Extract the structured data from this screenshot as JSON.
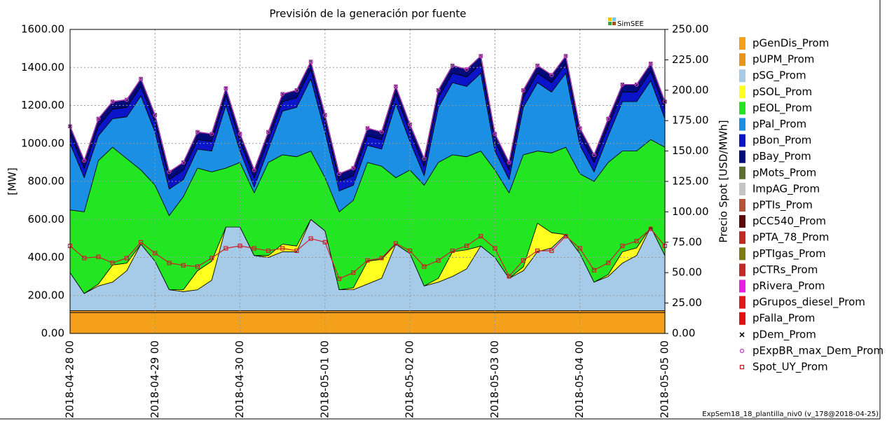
{
  "chart_data": {
    "type": "area",
    "title": "Previsión de la generación por fuente",
    "logo": "SimSEE",
    "footer": "ExpSem18_18_plantilla_niv0 (v_178@2018-04-25)",
    "ylabel": "[MW]",
    "y2label": "Precio Spot [USD/MWh]",
    "grid": true,
    "legend": "right",
    "x": [
      0,
      4,
      8,
      12,
      16,
      20,
      24,
      28,
      32,
      36,
      40,
      44,
      48,
      52,
      56,
      60,
      64,
      68,
      72,
      76,
      80,
      84,
      88,
      92,
      96,
      100,
      104,
      108,
      112,
      116,
      120,
      124,
      128,
      132,
      136,
      140,
      144,
      148,
      152,
      156,
      160,
      164,
      168
    ],
    "xlim": [
      0,
      168
    ],
    "xticks": [
      {
        "value": 0,
        "label": "2018-04-28 00"
      },
      {
        "value": 24,
        "label": "2018-04-29 00"
      },
      {
        "value": 48,
        "label": "2018-04-30 00"
      },
      {
        "value": 72,
        "label": "2018-05-01 00"
      },
      {
        "value": 96,
        "label": "2018-05-02 00"
      },
      {
        "value": 120,
        "label": "2018-05-03 00"
      },
      {
        "value": 144,
        "label": "2018-05-04 00"
      },
      {
        "value": 168,
        "label": "2018-05-05 00"
      }
    ],
    "ylim": [
      0,
      1600
    ],
    "yticks": [
      {
        "value": 0,
        "label": "0.00"
      },
      {
        "value": 200,
        "label": "200.00"
      },
      {
        "value": 400,
        "label": "400.00"
      },
      {
        "value": 600,
        "label": "600.00"
      },
      {
        "value": 800,
        "label": "800.00"
      },
      {
        "value": 1000,
        "label": "1000.00"
      },
      {
        "value": 1200,
        "label": "1200.00"
      },
      {
        "value": 1400,
        "label": "1400.00"
      },
      {
        "value": 1600,
        "label": "1600.00"
      }
    ],
    "y2lim": [
      0,
      250
    ],
    "y2ticks": [
      {
        "value": 0,
        "label": "0.00"
      },
      {
        "value": 25,
        "label": "25.00"
      },
      {
        "value": 50,
        "label": "50.00"
      },
      {
        "value": 75,
        "label": "75.00"
      },
      {
        "value": 100,
        "label": "100.00"
      },
      {
        "value": 125,
        "label": "125.00"
      },
      {
        "value": 150,
        "label": "150.00"
      },
      {
        "value": 175,
        "label": "175.00"
      },
      {
        "value": 200,
        "label": "200.00"
      },
      {
        "value": 225,
        "label": "225.00"
      },
      {
        "value": 250,
        "label": "250.00"
      }
    ],
    "series": [
      {
        "name": "pGenDis_Prom",
        "color": "#f5a01a",
        "values": [
          110,
          110,
          110,
          110,
          110,
          110,
          110,
          110,
          110,
          110,
          110,
          110,
          110,
          110,
          110,
          110,
          110,
          110,
          110,
          110,
          110,
          110,
          110,
          110,
          110,
          110,
          110,
          110,
          110,
          110,
          110,
          110,
          110,
          110,
          110,
          110,
          110,
          110,
          110,
          110,
          110,
          110,
          110
        ]
      },
      {
        "name": "pUPM_Prom",
        "color": "#e8941a",
        "values": [
          10,
          10,
          10,
          10,
          10,
          10,
          10,
          10,
          10,
          10,
          10,
          10,
          10,
          10,
          10,
          10,
          10,
          10,
          10,
          10,
          10,
          10,
          10,
          10,
          10,
          10,
          10,
          10,
          10,
          10,
          10,
          10,
          10,
          10,
          10,
          10,
          10,
          10,
          10,
          10,
          10,
          10,
          10
        ]
      },
      {
        "name": "pSG_Prom",
        "color": "#a6cbe8",
        "values": [
          200,
          90,
          130,
          150,
          210,
          350,
          260,
          110,
          100,
          110,
          160,
          440,
          440,
          290,
          280,
          310,
          310,
          480,
          420,
          110,
          110,
          140,
          170,
          350,
          300,
          130,
          150,
          180,
          220,
          340,
          280,
          170,
          210,
          310,
          330,
          400,
          300,
          150,
          180,
          250,
          290,
          440,
          290
        ]
      },
      {
        "name": "pSOL_Prom",
        "color": "#ffff20",
        "values": [
          0,
          0,
          10,
          90,
          40,
          0,
          0,
          0,
          10,
          100,
          100,
          0,
          0,
          0,
          10,
          40,
          30,
          0,
          0,
          0,
          10,
          120,
          100,
          0,
          0,
          0,
          20,
          130,
          100,
          0,
          0,
          0,
          20,
          150,
          80,
          0,
          0,
          0,
          10,
          60,
          40,
          0,
          0
        ]
      },
      {
        "name": "pEOL_Prom",
        "color": "#22e622",
        "values": [
          330,
          430,
          650,
          620,
          550,
          390,
          400,
          390,
          490,
          540,
          470,
          310,
          340,
          330,
          490,
          470,
          470,
          360,
          280,
          410,
          460,
          520,
          490,
          350,
          440,
          530,
          610,
          510,
          490,
          500,
          460,
          450,
          590,
          380,
          420,
          460,
          420,
          530,
          590,
          530,
          510,
          460,
          570
        ]
      },
      {
        "name": "pPal_Prom",
        "color": "#1a8fe3",
        "values": [
          350,
          180,
          130,
          150,
          220,
          390,
          280,
          140,
          90,
          100,
          110,
          330,
          60,
          30,
          70,
          230,
          260,
          380,
          240,
          110,
          80,
          90,
          90,
          390,
          150,
          50,
          290,
          380,
          370,
          410,
          100,
          70,
          250,
          360,
          320,
          390,
          150,
          50,
          140,
          260,
          260,
          310,
          150
        ]
      },
      {
        "name": "pBon_Prom",
        "color": "#0a14c8",
        "values": [
          50,
          50,
          50,
          50,
          50,
          50,
          50,
          50,
          50,
          50,
          50,
          50,
          50,
          50,
          50,
          50,
          50,
          50,
          50,
          50,
          50,
          50,
          50,
          50,
          50,
          50,
          50,
          50,
          50,
          50,
          50,
          50,
          50,
          50,
          50,
          50,
          50,
          50,
          50,
          50,
          50,
          50,
          50
        ]
      },
      {
        "name": "pBay_Prom",
        "color": "#000a78",
        "values": [
          40,
          40,
          40,
          40,
          40,
          40,
          40,
          40,
          40,
          40,
          40,
          40,
          40,
          40,
          40,
          40,
          40,
          40,
          40,
          40,
          40,
          40,
          40,
          40,
          40,
          40,
          40,
          40,
          40,
          40,
          40,
          40,
          40,
          40,
          40,
          40,
          40,
          40,
          40,
          40,
          40,
          40,
          40
        ]
      },
      {
        "name": "pMots_Prom",
        "color": "#5f6e30",
        "values": [
          0,
          0,
          0,
          0,
          0,
          0,
          0,
          0,
          0,
          0,
          0,
          0,
          0,
          0,
          0,
          0,
          0,
          0,
          0,
          0,
          0,
          0,
          0,
          0,
          0,
          0,
          0,
          0,
          0,
          0,
          0,
          0,
          0,
          0,
          0,
          0,
          0,
          0,
          0,
          0,
          0,
          0,
          0
        ]
      },
      {
        "name": "ImpAG_Prom",
        "color": "#c4c4c4",
        "values": [
          0,
          0,
          0,
          0,
          0,
          0,
          0,
          0,
          0,
          0,
          0,
          0,
          0,
          0,
          0,
          0,
          0,
          0,
          0,
          0,
          0,
          0,
          0,
          0,
          0,
          0,
          0,
          0,
          0,
          0,
          0,
          0,
          0,
          0,
          0,
          0,
          0,
          0,
          0,
          0,
          0,
          0,
          0
        ]
      },
      {
        "name": "pPTIs_Prom",
        "color": "#b5523a",
        "values": [
          0,
          0,
          0,
          0,
          0,
          0,
          0,
          0,
          0,
          0,
          0,
          0,
          0,
          0,
          0,
          0,
          0,
          0,
          0,
          0,
          0,
          0,
          0,
          0,
          0,
          0,
          0,
          0,
          0,
          0,
          0,
          0,
          0,
          0,
          0,
          0,
          0,
          0,
          0,
          0,
          0,
          0,
          0
        ]
      },
      {
        "name": "pCC540_Prom",
        "color": "#5a0808",
        "values": [
          0,
          0,
          0,
          0,
          0,
          0,
          0,
          0,
          0,
          0,
          0,
          0,
          0,
          0,
          0,
          0,
          0,
          0,
          0,
          0,
          0,
          0,
          0,
          0,
          0,
          0,
          0,
          0,
          0,
          0,
          0,
          0,
          0,
          0,
          0,
          0,
          0,
          0,
          0,
          0,
          0,
          0,
          0
        ]
      },
      {
        "name": "pPTA_78_Prom",
        "color": "#c02a24",
        "values": [
          0,
          0,
          0,
          0,
          0,
          0,
          0,
          0,
          0,
          0,
          0,
          0,
          0,
          0,
          0,
          0,
          0,
          0,
          0,
          0,
          0,
          0,
          0,
          0,
          0,
          0,
          0,
          0,
          0,
          0,
          0,
          0,
          0,
          0,
          0,
          0,
          0,
          0,
          0,
          0,
          0,
          0,
          0
        ]
      },
      {
        "name": "pPTIgas_Prom",
        "color": "#7c7a10",
        "values": [
          0,
          0,
          0,
          0,
          0,
          0,
          0,
          0,
          0,
          0,
          0,
          0,
          0,
          0,
          0,
          0,
          0,
          0,
          0,
          0,
          0,
          0,
          0,
          0,
          0,
          0,
          0,
          0,
          0,
          0,
          0,
          0,
          0,
          0,
          0,
          0,
          0,
          0,
          0,
          0,
          0,
          0,
          0
        ]
      },
      {
        "name": "pCTRs_Prom",
        "color": "#c22a2a",
        "values": [
          0,
          0,
          0,
          0,
          0,
          0,
          0,
          0,
          0,
          0,
          0,
          0,
          0,
          0,
          0,
          0,
          0,
          0,
          0,
          0,
          0,
          0,
          0,
          0,
          0,
          0,
          0,
          0,
          0,
          0,
          0,
          0,
          0,
          0,
          0,
          0,
          0,
          0,
          0,
          0,
          0,
          0,
          0
        ]
      },
      {
        "name": "pRivera_Prom",
        "color": "#e61ee6",
        "values": [
          0,
          0,
          0,
          0,
          0,
          0,
          0,
          0,
          0,
          0,
          0,
          0,
          0,
          0,
          0,
          0,
          0,
          0,
          0,
          0,
          0,
          0,
          0,
          0,
          0,
          0,
          0,
          0,
          0,
          0,
          0,
          0,
          0,
          0,
          0,
          0,
          0,
          0,
          0,
          0,
          0,
          0,
          0
        ]
      },
      {
        "name": "pGrupos_diesel_Prom",
        "color": "#e21818",
        "values": [
          0,
          0,
          0,
          0,
          0,
          0,
          0,
          0,
          0,
          0,
          0,
          0,
          0,
          0,
          0,
          0,
          0,
          0,
          0,
          0,
          0,
          0,
          0,
          0,
          0,
          0,
          0,
          0,
          0,
          0,
          0,
          0,
          0,
          0,
          0,
          0,
          0,
          0,
          0,
          0,
          0,
          0,
          0
        ]
      },
      {
        "name": "pFalla_Prom",
        "color": "#e01010",
        "values": [
          0,
          0,
          0,
          0,
          0,
          0,
          0,
          0,
          0,
          0,
          0,
          0,
          0,
          0,
          0,
          0,
          0,
          0,
          0,
          0,
          0,
          0,
          0,
          0,
          0,
          0,
          0,
          0,
          0,
          0,
          0,
          0,
          0,
          0,
          0,
          0,
          0,
          0,
          0,
          0,
          0,
          0,
          0
        ]
      },
      {
        "name": "pDem_Prom",
        "color": "#000000",
        "marker": "x",
        "values": [
          1090,
          910,
          1130,
          1220,
          1230,
          1340,
          1150,
          850,
          900,
          1060,
          1050,
          1290,
          1050,
          860,
          1060,
          1260,
          1280,
          1430,
          1150,
          840,
          870,
          1080,
          1060,
          1300,
          1100,
          920,
          1280,
          1410,
          1390,
          1460,
          1050,
          900,
          1280,
          1410,
          1360,
          1460,
          1080,
          940,
          1130,
          1310,
          1310,
          1420,
          1220
        ]
      },
      {
        "name": "pExpBR_max_Dem_Prom",
        "color": "#c040c8",
        "marker": "circle",
        "values": [
          1090,
          910,
          1130,
          1220,
          1230,
          1340,
          1150,
          850,
          900,
          1060,
          1050,
          1290,
          1050,
          860,
          1060,
          1260,
          1280,
          1430,
          1150,
          840,
          870,
          1080,
          1060,
          1300,
          1100,
          920,
          1280,
          1410,
          1390,
          1460,
          1050,
          900,
          1280,
          1410,
          1360,
          1460,
          1080,
          940,
          1130,
          1310,
          1310,
          1420,
          1220
        ]
      },
      {
        "name": "Spot_UY_Prom",
        "color": "#c8202a",
        "marker": "square",
        "axis": "y2",
        "values": [
          72,
          62,
          63,
          58,
          62,
          75,
          66,
          58,
          56,
          55,
          62,
          70,
          72,
          70,
          68,
          70,
          68,
          78,
          75,
          45,
          50,
          60,
          62,
          74,
          68,
          55,
          60,
          68,
          72,
          80,
          70,
          47,
          60,
          68,
          68,
          80,
          70,
          52,
          58,
          72,
          76,
          86,
          72
        ]
      }
    ]
  }
}
